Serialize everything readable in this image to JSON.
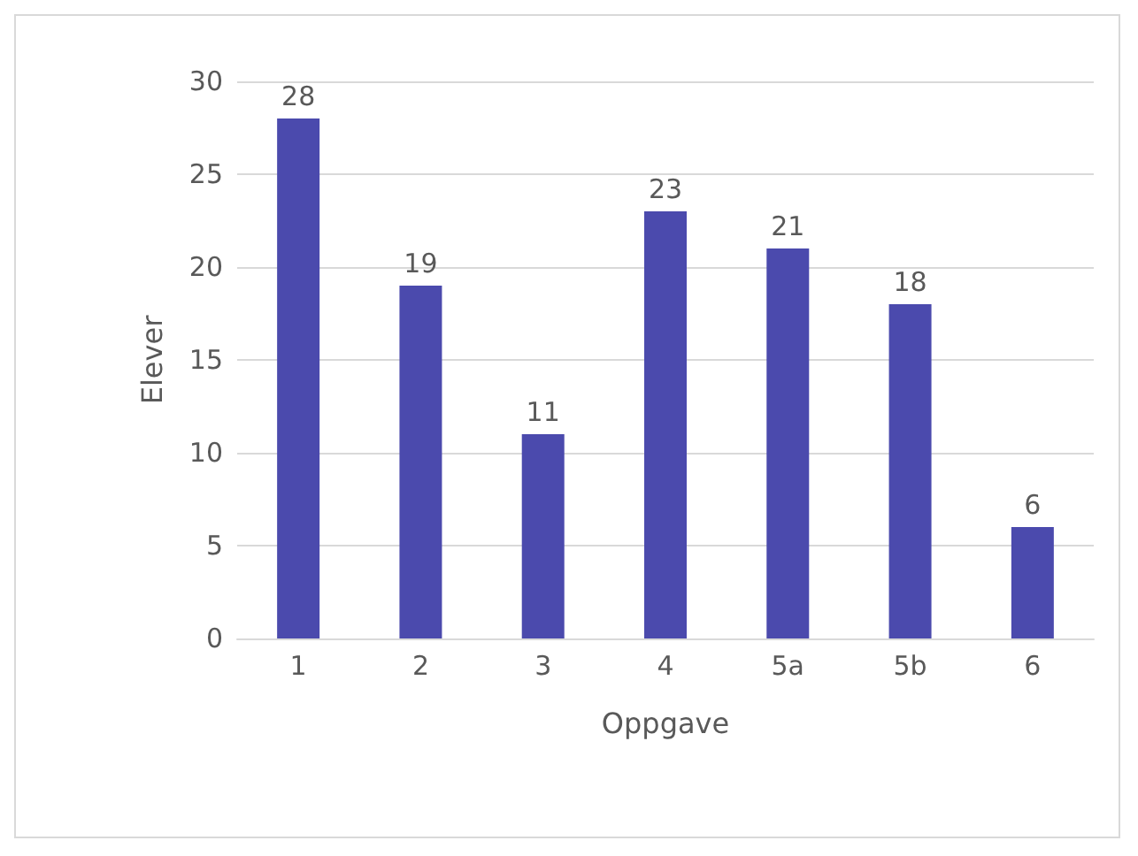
{
  "chart_data": {
    "type": "bar",
    "xlabel": "Oppgave",
    "ylabel": "Elever",
    "categories": [
      "1",
      "2",
      "3",
      "4",
      "5a",
      "5b",
      "6"
    ],
    "values": [
      28,
      19,
      11,
      23,
      21,
      18,
      6
    ],
    "color": "#4b4aad",
    "ylim": [
      0,
      30
    ],
    "yticks": [
      0,
      5,
      10,
      15,
      20,
      25,
      30
    ],
    "grid": "y",
    "data_labels": true
  }
}
